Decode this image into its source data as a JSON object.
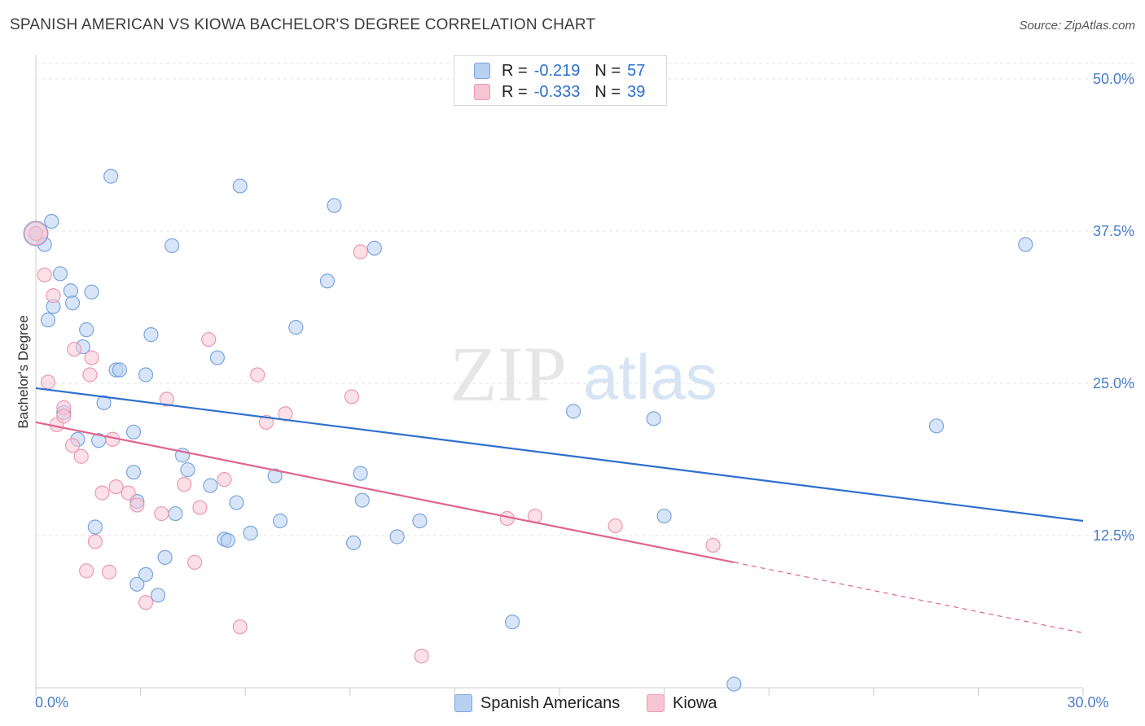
{
  "title": "SPANISH AMERICAN VS KIOWA BACHELOR'S DEGREE CORRELATION CHART",
  "source": "Source: ZipAtlas.com",
  "watermark": {
    "zip": "ZIP",
    "atlas": "atlas"
  },
  "colors": {
    "blue_fill": "#b8d0f2",
    "blue_stroke": "#7aa5de",
    "blue_line": "#2f6fd0",
    "pink_fill": "#f7c6d4",
    "pink_stroke": "#ec98b3",
    "pink_line": "#e0648f",
    "accent_text": "#2a6fd0",
    "grid": "#e3e3e3"
  },
  "legend": [
    {
      "r_label": "R =",
      "r_value": "-0.219",
      "n_label": "N =",
      "n_value": "57"
    },
    {
      "r_label": "R =",
      "r_value": "-0.333",
      "n_label": "N =",
      "n_value": "39"
    }
  ],
  "bottom_legend": [
    "Spanish Americans",
    "Kiowa"
  ],
  "chart_data": {
    "type": "scatter",
    "title": "SPANISH AMERICAN VS KIOWA BACHELOR'S DEGREE CORRELATION CHART",
    "xlabel": "",
    "ylabel": "Bachelor's Degree",
    "xlim": [
      0,
      30
    ],
    "ylim": [
      0,
      52
    ],
    "x_tick_labels": [
      {
        "value": 0,
        "label": "0.0%"
      },
      {
        "value": 30,
        "label": "30.0%"
      }
    ],
    "y_tick_labels": [
      {
        "value": 12.5,
        "label": "12.5%"
      },
      {
        "value": 25,
        "label": "25.0%"
      },
      {
        "value": 37.5,
        "label": "37.5%"
      },
      {
        "value": 50,
        "label": "50.0%"
      }
    ],
    "grid": true,
    "legend_position": "top-center",
    "series": [
      {
        "name": "Spanish Americans",
        "r": -0.219,
        "n": 57,
        "trend": {
          "x": [
            0,
            30
          ],
          "y": [
            24.6,
            13.7
          ]
        },
        "points": [
          [
            0.0,
            37.3
          ],
          [
            0.25,
            36.4
          ],
          [
            0.45,
            38.3
          ],
          [
            0.35,
            30.2
          ],
          [
            0.5,
            31.3
          ],
          [
            0.7,
            34.0
          ],
          [
            1.0,
            32.6
          ],
          [
            1.05,
            31.6
          ],
          [
            1.6,
            32.5
          ],
          [
            1.45,
            29.4
          ],
          [
            1.35,
            28.0
          ],
          [
            0.8,
            22.6
          ],
          [
            1.2,
            20.4
          ],
          [
            1.8,
            20.3
          ],
          [
            1.95,
            23.4
          ],
          [
            2.15,
            42.0
          ],
          [
            2.3,
            26.1
          ],
          [
            2.4,
            26.1
          ],
          [
            3.15,
            25.7
          ],
          [
            3.3,
            29.0
          ],
          [
            2.8,
            17.7
          ],
          [
            2.8,
            21.0
          ],
          [
            2.9,
            15.3
          ],
          [
            1.7,
            13.2
          ],
          [
            2.9,
            8.5
          ],
          [
            3.15,
            9.3
          ],
          [
            3.5,
            7.6
          ],
          [
            3.7,
            10.7
          ],
          [
            4.0,
            14.3
          ],
          [
            4.2,
            19.1
          ],
          [
            3.9,
            36.3
          ],
          [
            4.35,
            17.9
          ],
          [
            5.2,
            27.1
          ],
          [
            5.0,
            16.6
          ],
          [
            5.4,
            12.2
          ],
          [
            5.5,
            12.1
          ],
          [
            5.75,
            15.2
          ],
          [
            5.85,
            41.2
          ],
          [
            6.15,
            12.7
          ],
          [
            6.85,
            17.4
          ],
          [
            7.0,
            13.7
          ],
          [
            7.45,
            29.6
          ],
          [
            8.35,
            33.4
          ],
          [
            8.55,
            39.6
          ],
          [
            9.1,
            11.9
          ],
          [
            9.3,
            17.6
          ],
          [
            9.35,
            15.4
          ],
          [
            9.7,
            36.1
          ],
          [
            10.35,
            12.4
          ],
          [
            11.0,
            13.7
          ],
          [
            13.65,
            5.4
          ],
          [
            15.4,
            22.7
          ],
          [
            17.7,
            22.1
          ],
          [
            18.0,
            14.1
          ],
          [
            20.0,
            0.3
          ],
          [
            25.8,
            21.5
          ],
          [
            28.35,
            36.4
          ]
        ]
      },
      {
        "name": "Kiowa",
        "r": -0.333,
        "n": 39,
        "trend": {
          "x": [
            0,
            20.0
          ],
          "y": [
            21.8,
            10.3
          ]
        },
        "trend_dashed": {
          "x": [
            20.0,
            30
          ],
          "y": [
            10.3,
            4.5
          ]
        },
        "points": [
          [
            0.0,
            37.3
          ],
          [
            0.25,
            33.9
          ],
          [
            0.35,
            25.1
          ],
          [
            0.5,
            32.2
          ],
          [
            0.6,
            21.6
          ],
          [
            0.8,
            23.0
          ],
          [
            0.8,
            22.3
          ],
          [
            1.05,
            19.9
          ],
          [
            1.1,
            27.8
          ],
          [
            1.3,
            19.0
          ],
          [
            1.55,
            25.7
          ],
          [
            1.6,
            27.1
          ],
          [
            1.7,
            12.0
          ],
          [
            1.9,
            16.0
          ],
          [
            1.45,
            9.6
          ],
          [
            2.1,
            9.5
          ],
          [
            2.2,
            20.4
          ],
          [
            2.3,
            16.5
          ],
          [
            2.65,
            16.0
          ],
          [
            2.9,
            15.0
          ],
          [
            3.15,
            7.0
          ],
          [
            3.6,
            14.3
          ],
          [
            3.75,
            23.7
          ],
          [
            4.25,
            16.7
          ],
          [
            4.55,
            10.3
          ],
          [
            4.7,
            14.8
          ],
          [
            4.95,
            28.6
          ],
          [
            5.4,
            17.1
          ],
          [
            5.85,
            5.0
          ],
          [
            6.35,
            25.7
          ],
          [
            6.6,
            21.8
          ],
          [
            7.15,
            22.5
          ],
          [
            9.05,
            23.9
          ],
          [
            9.3,
            35.8
          ],
          [
            11.05,
            2.6
          ],
          [
            13.5,
            13.9
          ],
          [
            14.3,
            14.1
          ],
          [
            16.6,
            13.3
          ],
          [
            19.4,
            11.7
          ]
        ]
      }
    ]
  }
}
